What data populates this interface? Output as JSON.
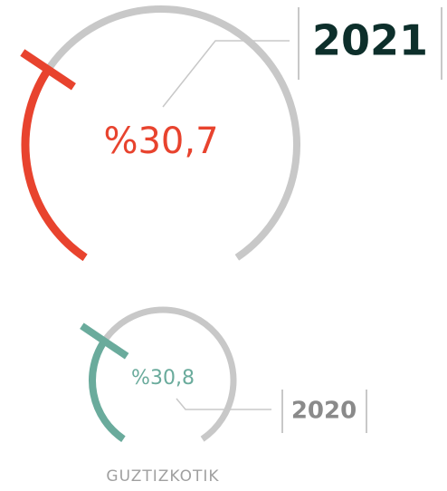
{
  "chart_data": [
    {
      "type": "gauge",
      "title": "2021",
      "values": [
        30.7
      ],
      "value_labels": [
        "%30,7"
      ],
      "color": "#e8432e",
      "track_color": "#c8c8c8",
      "ylim": [
        0,
        100
      ]
    },
    {
      "type": "gauge",
      "title": "2020",
      "values": [
        30.8
      ],
      "value_labels": [
        "%30,8"
      ],
      "color": "#6aab9c",
      "track_color": "#c8c8c8",
      "ylim": [
        0,
        100
      ]
    }
  ],
  "footer": "GUZTIZKOTIK"
}
